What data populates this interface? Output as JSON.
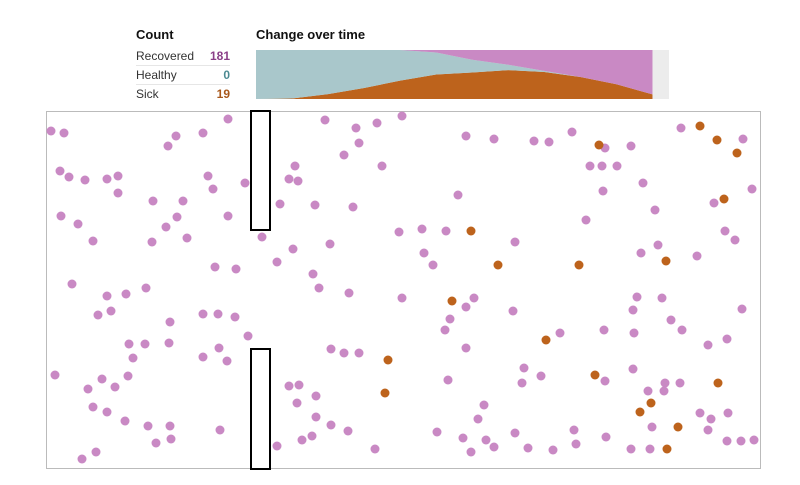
{
  "count": {
    "title": "Count",
    "rows": [
      {
        "label": "Recovered",
        "value": "181",
        "color": "#8b3f88"
      },
      {
        "label": "Healthy",
        "value": "0",
        "color": "#4c8a92"
      },
      {
        "label": "Sick",
        "value": "19",
        "color": "#a8581c"
      }
    ]
  },
  "chart": {
    "title": "Change over time"
  },
  "colors": {
    "recovered": "#c989c4",
    "healthy": "#a9c7cb",
    "sick": "#bd631c",
    "pending": "#ececec"
  },
  "chart_data": {
    "type": "area",
    "stacked": true,
    "total": 200,
    "x": [
      0,
      1,
      2,
      3,
      4,
      5,
      6,
      7,
      8,
      9,
      10,
      11
    ],
    "series": [
      {
        "key": "sick",
        "values": [
          0,
          2,
          20,
          45,
          75,
          100,
          108,
          118,
          110,
          90,
          60,
          19
        ]
      },
      {
        "key": "healthy",
        "values": [
          200,
          198,
          180,
          155,
          125,
          90,
          52,
          22,
          5,
          0,
          0,
          0
        ]
      },
      {
        "key": "recovered",
        "values": [
          0,
          0,
          0,
          0,
          0,
          10,
          40,
          60,
          85,
          110,
          140,
          181
        ]
      }
    ],
    "progress": 0.96
  }
}
